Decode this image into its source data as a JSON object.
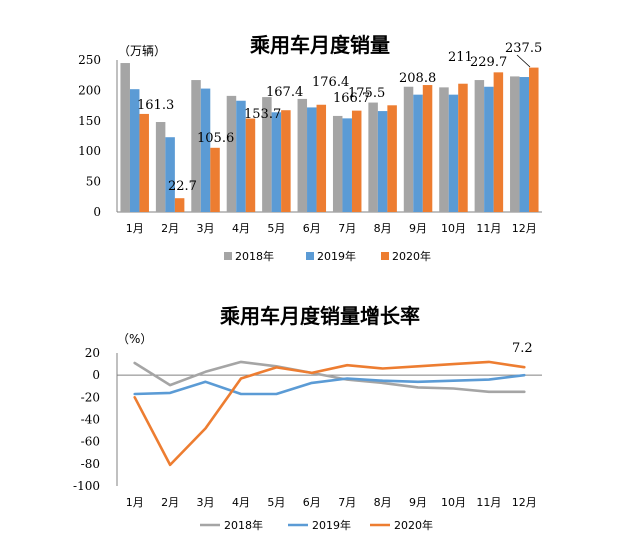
{
  "chart_data": [
    {
      "type": "bar",
      "title": "乘用车月度销量",
      "ylabel": "（万辆）",
      "ylim": [
        0,
        250
      ],
      "yticks": [
        0,
        50,
        100,
        150,
        200,
        250
      ],
      "categories": [
        "1月",
        "2月",
        "3月",
        "4月",
        "5月",
        "6月",
        "7月",
        "8月",
        "9月",
        "10月",
        "11月",
        "12月"
      ],
      "series": [
        {
          "name": "2018年",
          "color": "#a5a5a5",
          "values": [
            245,
            148,
            217,
            191,
            189,
            186,
            158,
            180,
            206,
            205,
            217,
            223
          ]
        },
        {
          "name": "2019年",
          "color": "#5b9bd5",
          "values": [
            202,
            123,
            203,
            183,
            164,
            172,
            154,
            166,
            193,
            193,
            206,
            222
          ]
        },
        {
          "name": "2020年",
          "color": "#ed7d31",
          "values": [
            161.3,
            22.7,
            105.6,
            153.7,
            167.4,
            176.4,
            166.7,
            175.5,
            208.8,
            211,
            229.7,
            237.5
          ]
        }
      ],
      "data_labels": [
        "161.3",
        "22.7",
        "105.6",
        "153.7",
        "167.4",
        "176.4",
        "166.7",
        "175.5",
        "208.8",
        "211",
        "229.7",
        "237.5"
      ],
      "legend": [
        "2018年",
        "2019年",
        "2020年"
      ],
      "legend_position": "bottom"
    },
    {
      "type": "line",
      "title": "乘用车月度销量增长率",
      "ylabel": "（%）",
      "ylim": [
        -100,
        20
      ],
      "yticks": [
        20,
        0,
        -20,
        -40,
        -60,
        -80,
        -100
      ],
      "categories": [
        "1月",
        "2月",
        "3月",
        "4月",
        "5月",
        "6月",
        "7月",
        "8月",
        "9月",
        "10月",
        "11月",
        "12月"
      ],
      "series": [
        {
          "name": "2018年",
          "color": "#a5a5a5",
          "values": [
            11,
            -9,
            3,
            12,
            8,
            2,
            -4,
            -7,
            -11,
            -12,
            -15,
            -15
          ]
        },
        {
          "name": "2019年",
          "color": "#5b9bd5",
          "values": [
            -17,
            -16,
            -6,
            -17,
            -17,
            -7,
            -3,
            -5,
            -6,
            -5,
            -4,
            0
          ]
        },
        {
          "name": "2020年",
          "color": "#ed7d31",
          "values": [
            -20,
            -81,
            -48,
            -3,
            7,
            2,
            9,
            6,
            8,
            10,
            12,
            7.2
          ]
        }
      ],
      "data_labels": [
        "7.2"
      ],
      "legend": [
        "2018年",
        "2019年",
        "2020年"
      ],
      "legend_position": "bottom"
    }
  ]
}
